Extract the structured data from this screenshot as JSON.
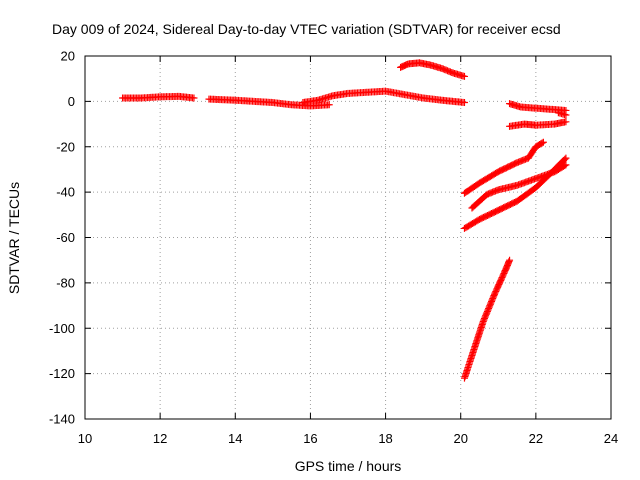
{
  "chart_data": {
    "type": "scatter",
    "title": "Day 009 of 2024, Sidereal Day-to-day VTEC variation (SDTVAR) for receiver ecsd",
    "xlabel": "GPS time / hours",
    "ylabel": "SDTVAR / TECUs",
    "xlim": [
      10,
      24
    ],
    "ylim": [
      -140,
      20
    ],
    "xticks": [
      10,
      12,
      14,
      16,
      18,
      20,
      22,
      24
    ],
    "yticks": [
      20,
      0,
      -20,
      -40,
      -60,
      -80,
      -100,
      -120,
      -140
    ],
    "grid": true,
    "legend": "none",
    "marker": "plus",
    "color": "#ff0000",
    "series": [
      {
        "x": [
          11.0,
          11.5,
          12.0,
          12.5,
          12.9
        ],
        "y": [
          1.5,
          1.5,
          2.0,
          2.2,
          1.5
        ]
      },
      {
        "x": [
          13.3,
          14.0,
          14.5,
          15.0,
          15.5,
          16.0,
          16.5
        ],
        "y": [
          1.0,
          0.5,
          0.0,
          -0.5,
          -1.5,
          -2.0,
          -1.5
        ]
      },
      {
        "x": [
          15.8,
          16.2,
          16.6,
          17.0,
          17.5,
          18.0,
          18.5,
          19.0,
          19.5,
          20.1
        ],
        "y": [
          -0.5,
          0.5,
          2.5,
          3.5,
          4.0,
          4.5,
          3.0,
          1.5,
          0.5,
          -0.5
        ]
      },
      {
        "x": [
          18.4,
          18.6,
          18.9,
          19.2,
          19.5,
          19.8,
          20.1
        ],
        "y": [
          15.0,
          16.5,
          17.0,
          16.0,
          14.5,
          12.5,
          11.0
        ]
      },
      {
        "x": [
          21.3,
          21.6,
          22.0,
          22.4,
          22.8
        ],
        "y": [
          -1.0,
          -2.5,
          -3.0,
          -3.5,
          -4.0
        ]
      },
      {
        "x": [
          22.6,
          22.8
        ],
        "y": [
          -5.0,
          -6.0
        ]
      },
      {
        "x": [
          21.3,
          21.7,
          22.0,
          22.5,
          22.8
        ],
        "y": [
          -11.0,
          -10.0,
          -10.5,
          -10.0,
          -9.0
        ]
      },
      {
        "x": [
          20.1,
          20.5,
          21.0,
          21.5,
          21.8,
          22.0,
          22.2
        ],
        "y": [
          -40.5,
          -36.0,
          -31.0,
          -27.0,
          -25.0,
          -20.0,
          -18.0
        ]
      },
      {
        "x": [
          20.3,
          20.7,
          21.0,
          21.5,
          22.0,
          22.5,
          22.8
        ],
        "y": [
          -47.0,
          -41.0,
          -39.0,
          -37.0,
          -34.0,
          -31.0,
          -28.0
        ]
      },
      {
        "x": [
          20.1,
          20.5,
          21.0,
          21.5,
          22.0,
          22.5,
          22.8
        ],
        "y": [
          -56.0,
          -52.0,
          -48.0,
          -44.0,
          -38.0,
          -30.0,
          -25.0
        ]
      },
      {
        "x": [
          20.1,
          20.3,
          20.6,
          20.9,
          21.2,
          21.3
        ],
        "y": [
          -122.0,
          -112.0,
          -97.0,
          -85.0,
          -74.0,
          -70.0
        ]
      }
    ]
  }
}
